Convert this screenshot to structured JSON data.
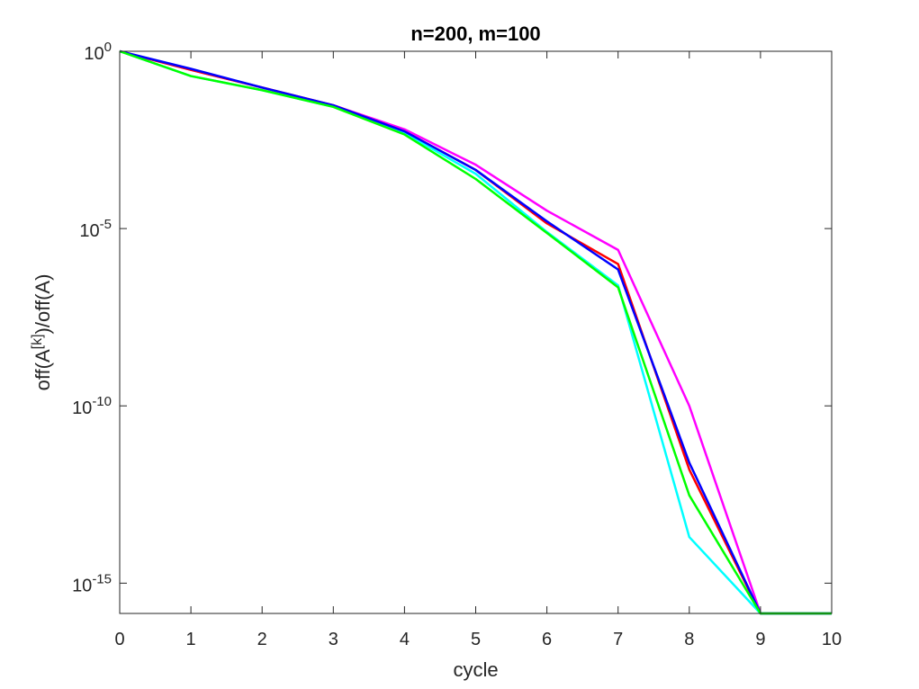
{
  "chart_data": {
    "type": "line",
    "title": "n=200, m=100",
    "xlabel": "cycle",
    "ylabel": "off(A^[k])/off(A)",
    "ylabel_parts": {
      "base": "off(A",
      "sup": "[k]",
      "tail": ")/off(A)"
    },
    "yscale": "log",
    "xlim": [
      0,
      10
    ],
    "ylim": [
      1.4e-16,
      1
    ],
    "grid": false,
    "box": true,
    "x_ticks": [
      0,
      1,
      2,
      3,
      4,
      5,
      6,
      7,
      8,
      9,
      10
    ],
    "y_ticks": [
      {
        "value": 1,
        "base": "10",
        "exp": "0"
      },
      {
        "value": 1e-05,
        "base": "10",
        "exp": "-5"
      },
      {
        "value": 1e-10,
        "base": "10",
        "exp": "-10"
      },
      {
        "value": 1e-15,
        "base": "10",
        "exp": "-15"
      }
    ],
    "x": [
      0,
      1,
      2,
      3,
      4,
      5,
      6,
      7,
      8,
      9,
      10
    ],
    "series": [
      {
        "color": "#ff00ff",
        "values": [
          1,
          0.3,
          0.095,
          0.03,
          0.0063,
          0.00063,
          3.2e-05,
          2.5e-06,
          1e-10,
          1.4e-16,
          1.4e-16
        ]
      },
      {
        "color": "#ff0000",
        "values": [
          1,
          0.3,
          0.095,
          0.03,
          0.0055,
          0.00045,
          1.4e-05,
          1e-06,
          1.6e-12,
          1.4e-16,
          1.4e-16
        ]
      },
      {
        "color": "#00ffff",
        "values": [
          1,
          0.2,
          0.08,
          0.027,
          0.005,
          0.00035,
          8e-06,
          2.5e-07,
          2e-14,
          1.4e-16,
          1.4e-16
        ]
      },
      {
        "color": "#0000ff",
        "values": [
          1,
          0.32,
          0.095,
          0.03,
          0.0055,
          0.00045,
          1.6e-05,
          7e-07,
          2.5e-12,
          1.4e-16,
          1.4e-16
        ]
      },
      {
        "color": "#00ff00",
        "values": [
          1,
          0.2,
          0.08,
          0.027,
          0.0045,
          0.00025,
          7.5e-06,
          2.2e-07,
          3e-13,
          1.4e-16,
          1.4e-16
        ]
      }
    ]
  }
}
